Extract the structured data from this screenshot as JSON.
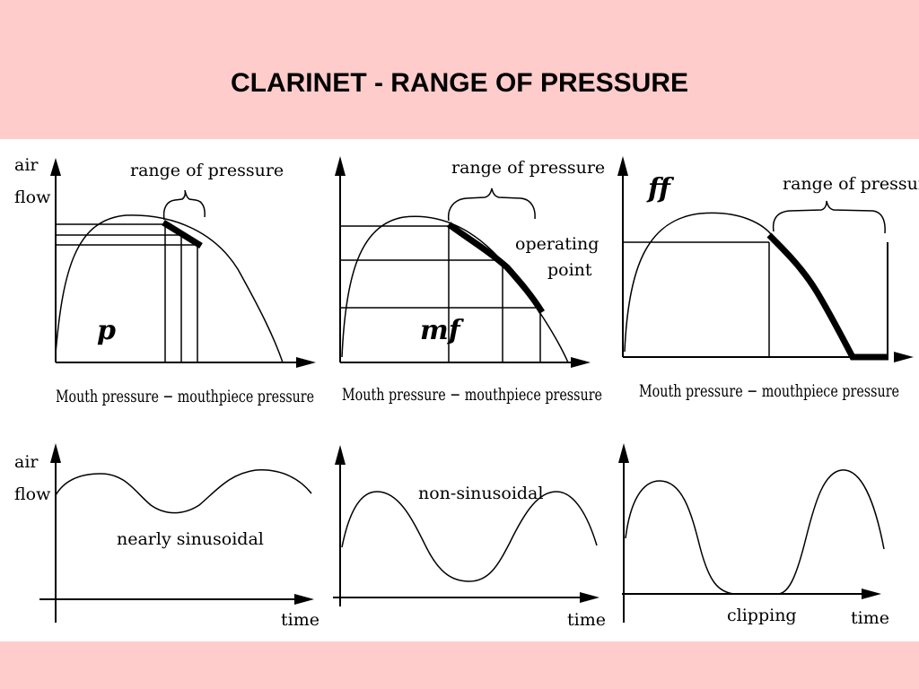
{
  "title": "CLARINET -  RANGE OF PRESSURE",
  "top_row": {
    "y_axis_label_line1": "air",
    "y_axis_label_line2": "flow",
    "x_axis_label": "Mouth pressure − mouthpiece pressure",
    "bracket_label": "range of pressure",
    "panels": [
      {
        "dynamic": "p"
      },
      {
        "dynamic": "mf",
        "annotation_line1": "operating",
        "annotation_line2": "point"
      },
      {
        "dynamic": "ff"
      }
    ]
  },
  "bottom_row": {
    "y_axis_label_line1": "air",
    "y_axis_label_line2": "flow",
    "x_axis_label": "time",
    "panels": [
      {
        "waveform_label": "nearly sinusoidal"
      },
      {
        "waveform_label": "non-sinusoidal"
      },
      {
        "waveform_label": "clipping"
      }
    ]
  },
  "colors": {
    "background": "#ffcccc",
    "panel": "#ffffff",
    "ink": "#000000"
  }
}
